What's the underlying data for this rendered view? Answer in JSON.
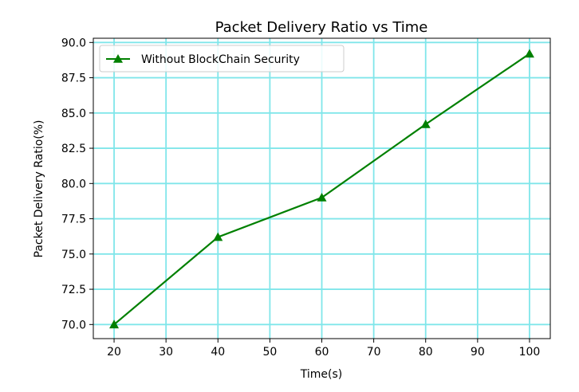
{
  "chart_data": {
    "type": "line",
    "title": "Packet Delivery Ratio vs Time",
    "xlabel": "Time(s)",
    "ylabel": "Packet Delivery Ratio(%)",
    "xlim": [
      16,
      104
    ],
    "ylim": [
      69.0,
      90.3
    ],
    "xticks": [
      20,
      30,
      40,
      50,
      60,
      70,
      80,
      90,
      100
    ],
    "xtick_labels": [
      "20",
      "30",
      "40",
      "50",
      "60",
      "70",
      "80",
      "90",
      "100"
    ],
    "yticks": [
      70.0,
      72.5,
      75.0,
      77.5,
      80.0,
      82.5,
      85.0,
      87.5,
      90.0
    ],
    "ytick_labels": [
      "70.0",
      "72.5",
      "75.0",
      "77.5",
      "80.0",
      "82.5",
      "85.0",
      "87.5",
      "90.0"
    ],
    "grid": true,
    "grid_color": "#80e6ea",
    "legend_position": "upper-left",
    "series": [
      {
        "name": "Without BlockChain Security",
        "color": "#008000",
        "marker": "triangle",
        "x": [
          20,
          40,
          60,
          80,
          100
        ],
        "y": [
          70.0,
          76.2,
          79.0,
          84.2,
          89.2
        ]
      }
    ]
  }
}
